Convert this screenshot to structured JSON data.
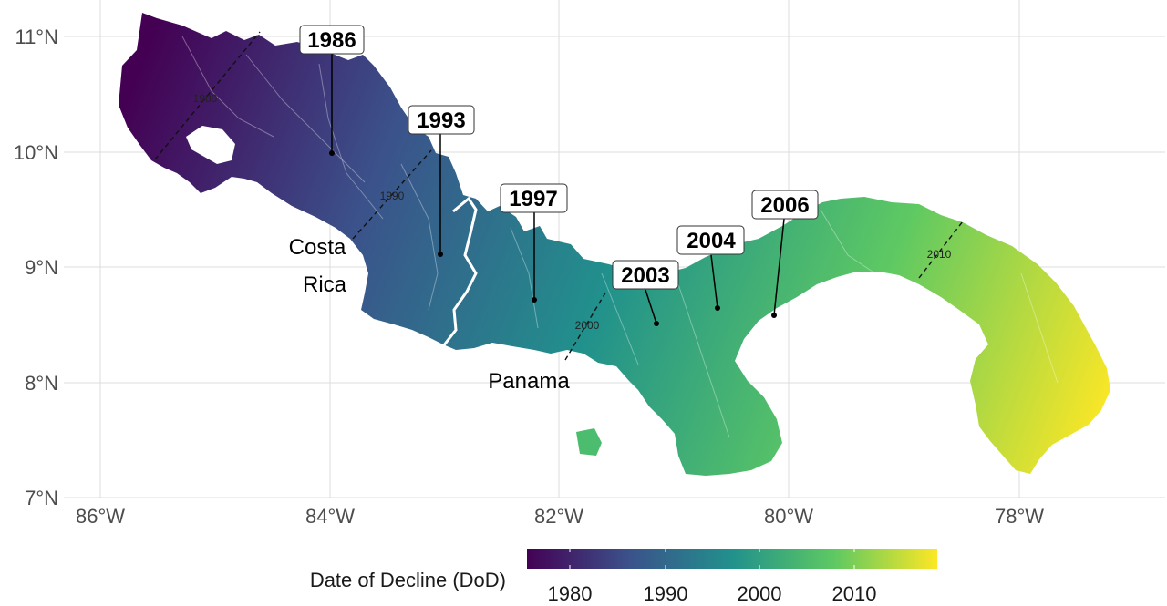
{
  "latitude_labels": [
    "11°N",
    "10°N",
    "9°N",
    "8°N",
    "7°N"
  ],
  "longitude_labels": [
    "86°W",
    "84°W",
    "82°W",
    "80°W",
    "78°W"
  ],
  "contour_labels": [
    "1980",
    "1990",
    "2000",
    "2010"
  ],
  "country_labels": {
    "costa_rica_line1": "Costa",
    "costa_rica_line2": "Rica",
    "panama": "Panama"
  },
  "year_callouts": [
    "1986",
    "1993",
    "1997",
    "2003",
    "2004",
    "2006"
  ],
  "legend": {
    "title": "Date of Decline (DoD)",
    "ticks": [
      "1980",
      "1990",
      "2000",
      "2010"
    ],
    "colormap": "viridis",
    "color_stops": [
      "#440154",
      "#3b528b",
      "#21918c",
      "#5ec962",
      "#fde725"
    ]
  },
  "colors": {
    "background": "#ffffff",
    "grid": "#dcdcdc",
    "border": "#ffffff",
    "contour": "#111111"
  }
}
